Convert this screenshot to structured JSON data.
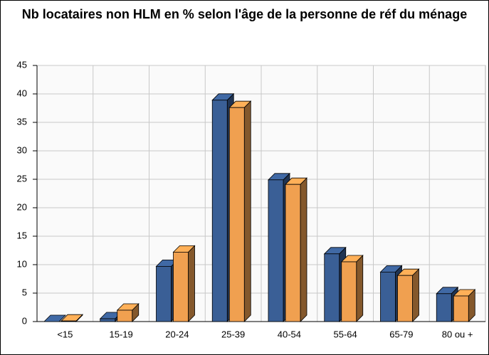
{
  "chart_data": {
    "type": "bar3d",
    "title": "Nb locataires non HLM en % selon l'âge de la personne de réf du ménage",
    "categories": [
      "<15",
      "15-19",
      "20-24",
      "25-39",
      "40-54",
      "55-64",
      "65-79",
      "80 ou +"
    ],
    "series": [
      {
        "color": "#3a5f96",
        "values": [
          0,
          0.5,
          9.7,
          38.9,
          24.9,
          11.9,
          8.7,
          4.9
        ]
      },
      {
        "color": "#f0a050",
        "values": [
          0.1,
          2,
          12.2,
          37.6,
          24.1,
          10.5,
          8.1,
          4.5
        ]
      }
    ],
    "ylim": [
      0,
      45
    ],
    "yticks": [
      0,
      5,
      10,
      15,
      20,
      25,
      30,
      35,
      40,
      45
    ],
    "grid": true
  }
}
